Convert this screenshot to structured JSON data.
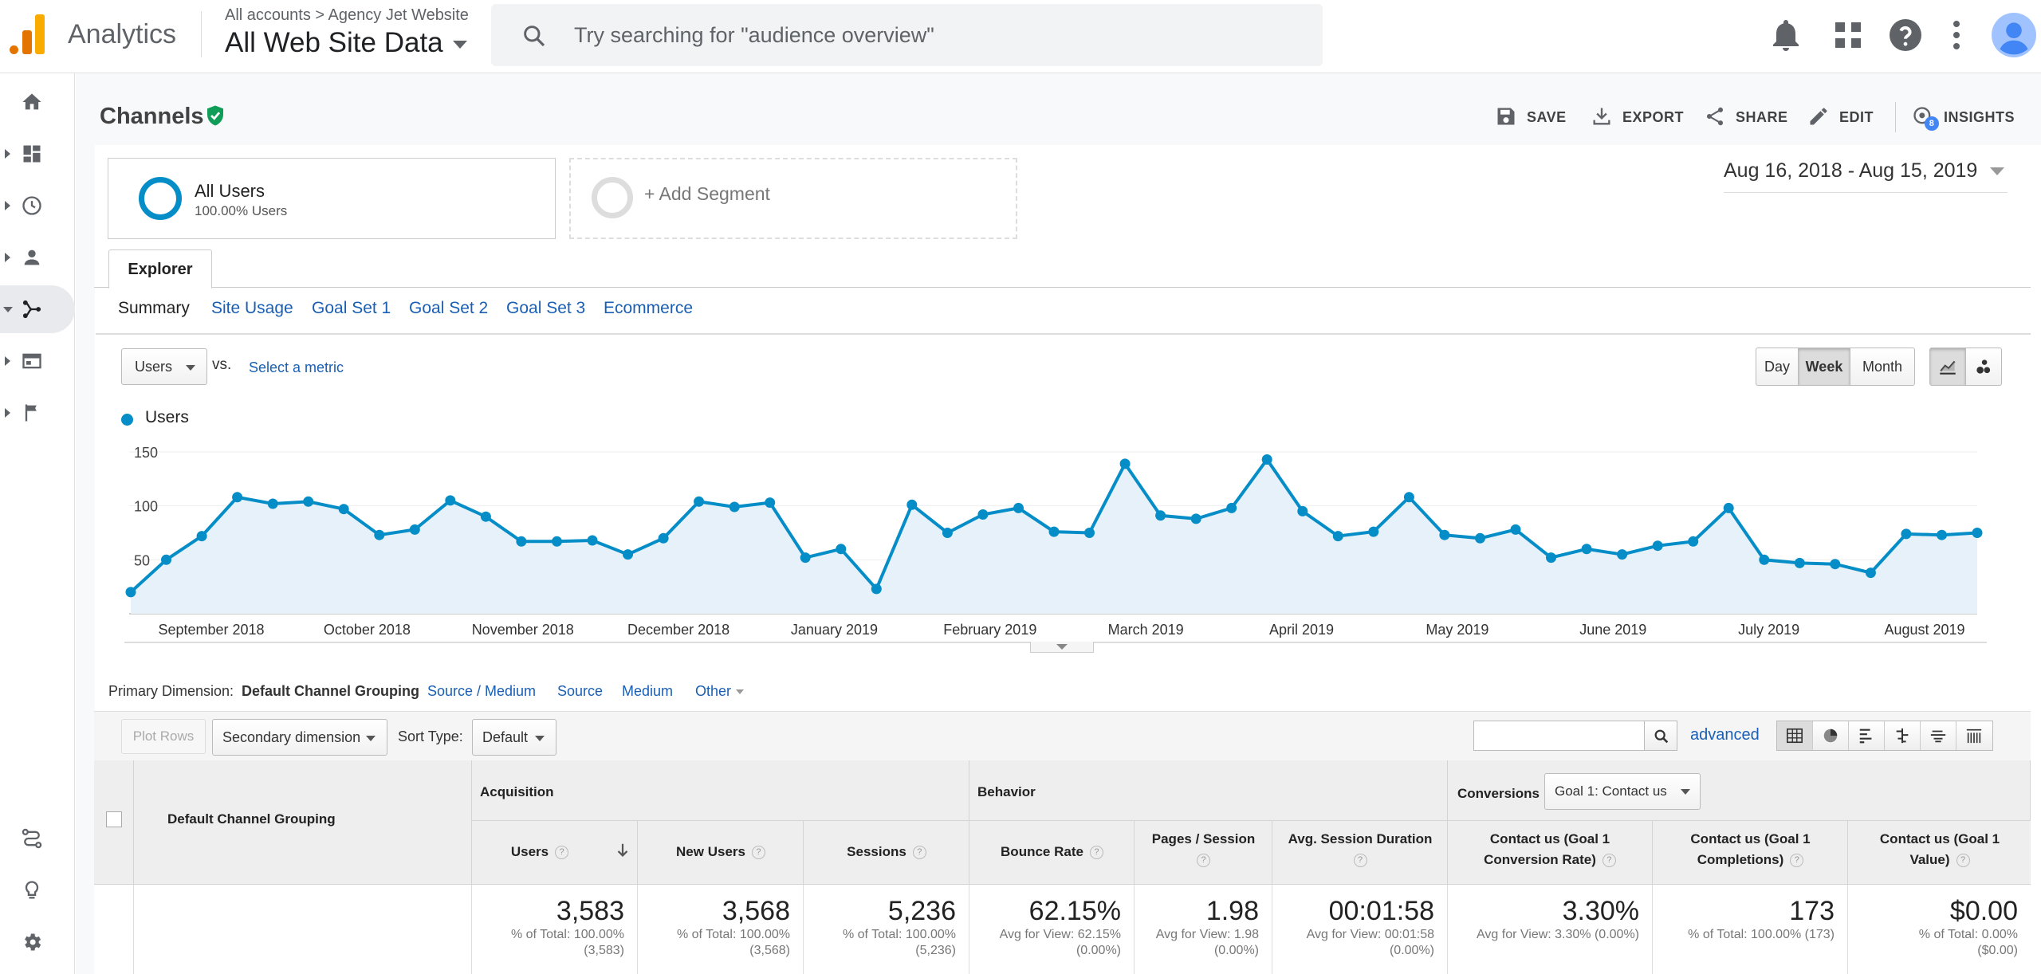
{
  "app": {
    "name": "Analytics",
    "breadcrumb_accounts": "All accounts",
    "breadcrumb_sep": ">",
    "breadcrumb_property": "Agency Jet Website",
    "view_name": "All Web Site Data"
  },
  "search": {
    "placeholder": "Try searching for \"audience overview\""
  },
  "header": {
    "title": "Channels",
    "actions": [
      "SAVE",
      "EXPORT",
      "SHARE",
      "EDIT",
      "INSIGHTS"
    ],
    "insights_badge": "8"
  },
  "segments": {
    "primary_name": "All Users",
    "primary_sub": "100.00% Users",
    "add_label": "+ Add Segment"
  },
  "date_range": "Aug 16, 2018 - Aug 15, 2019",
  "explorer": {
    "tab": "Explorer",
    "subtabs": [
      "Summary",
      "Site Usage",
      "Goal Set 1",
      "Goal Set 2",
      "Goal Set 3",
      "Ecommerce"
    ]
  },
  "metric_controls": {
    "metric": "Users",
    "vs": "vs.",
    "select_metric": "Select a metric",
    "periods": [
      "Day",
      "Week",
      "Month"
    ],
    "selected_period": "Week"
  },
  "chart_data": {
    "type": "line",
    "legend": "Users",
    "color": "#058dc7",
    "yticks": [
      150,
      100,
      50
    ],
    "ylim": [
      0,
      150
    ],
    "xlabels": [
      "September 2018",
      "October 2018",
      "November 2018",
      "December 2018",
      "January 2019",
      "February 2019",
      "March 2019",
      "April 2019",
      "May 2019",
      "June 2019",
      "July 2019",
      "August 2019"
    ],
    "values": [
      20,
      50,
      72,
      108,
      102,
      104,
      97,
      73,
      78,
      105,
      90,
      67,
      67,
      68,
      55,
      70,
      104,
      99,
      103,
      52,
      60,
      23,
      101,
      75,
      92,
      98,
      76,
      75,
      139,
      91,
      88,
      98,
      143,
      95,
      72,
      76,
      108,
      73,
      70,
      78,
      52,
      60,
      55,
      63,
      67,
      98,
      50,
      47,
      46,
      38,
      74,
      73,
      75
    ]
  },
  "primary_dimension": {
    "label": "Primary Dimension:",
    "selected": "Default Channel Grouping",
    "options": [
      "Source / Medium",
      "Source",
      "Medium",
      "Other"
    ]
  },
  "table_controls": {
    "plot_rows": "Plot Rows",
    "secondary": "Secondary dimension",
    "sort_label": "Sort Type:",
    "sort_value": "Default",
    "advanced": "advanced"
  },
  "table": {
    "dim_header": "Default Channel Grouping",
    "groups": {
      "acquisition": "Acquisition",
      "behavior": "Behavior",
      "conversions": "Conversions",
      "conversion_goal": "Goal 1: Contact us"
    },
    "columns": [
      "Users",
      "New Users",
      "Sessions",
      "Bounce Rate",
      "Pages / Session",
      "Avg. Session Duration",
      "Contact us (Goal 1 Conversion Rate)",
      "Contact us (Goal 1 Completions)",
      "Contact us (Goal 1 Value)"
    ],
    "totals": [
      {
        "value": "3,583",
        "sub1": "% of Total: 100.00%",
        "sub2": "(3,583)"
      },
      {
        "value": "3,568",
        "sub1": "% of Total: 100.00%",
        "sub2": "(3,568)"
      },
      {
        "value": "5,236",
        "sub1": "% of Total: 100.00%",
        "sub2": "(5,236)"
      },
      {
        "value": "62.15%",
        "sub1": "Avg for View: 62.15%",
        "sub2": "(0.00%)"
      },
      {
        "value": "1.98",
        "sub1": "Avg for View: 1.98",
        "sub2": "(0.00%)"
      },
      {
        "value": "00:01:58",
        "sub1": "Avg for View: 00:01:58",
        "sub2": "(0.00%)"
      },
      {
        "value": "3.30%",
        "sub1": "Avg for View: 3.30% (0.00%)",
        "sub2": ""
      },
      {
        "value": "173",
        "sub1": "% of Total: 100.00% (173)",
        "sub2": ""
      },
      {
        "value": "$0.00",
        "sub1": "% of Total: 0.00%",
        "sub2": "($0.00)"
      }
    ]
  }
}
